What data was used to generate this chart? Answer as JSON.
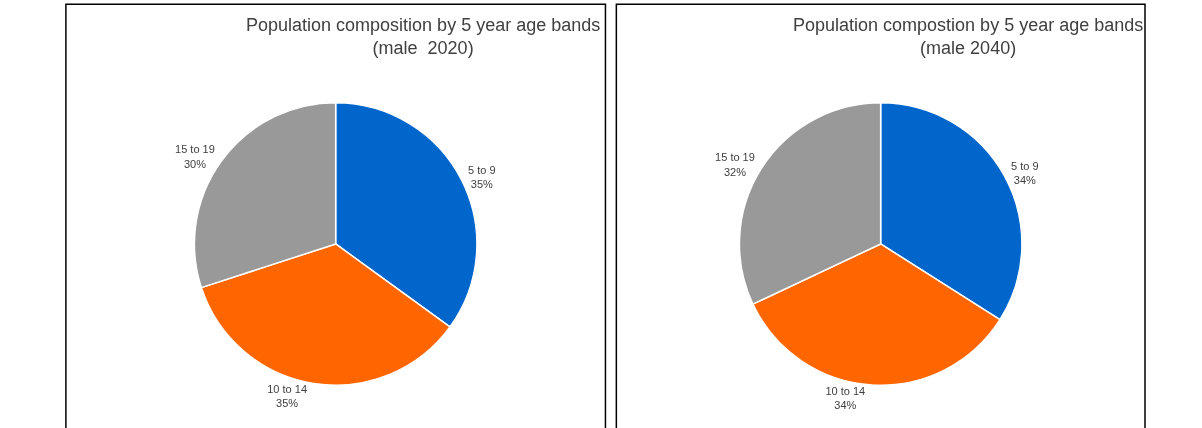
{
  "chart_data": [
    {
      "type": "pie",
      "title": "Population composition by 5 year age bands\n(male  2020)",
      "categories": [
        "5 to 9",
        "10 to 14",
        "15 to 19"
      ],
      "values": [
        35,
        35,
        30
      ],
      "value_labels": [
        "35%",
        "35%",
        "30%"
      ],
      "colors": [
        "#0066cc",
        "#ff6600",
        "#999999"
      ]
    },
    {
      "type": "pie",
      "title": "Population compostion by 5 year age bands\n(male 2040)",
      "categories": [
        "5 to 9",
        "10 to 14",
        "15 to 19"
      ],
      "values": [
        34,
        34,
        32
      ],
      "value_labels": [
        "34%",
        "34%",
        "32%"
      ],
      "colors": [
        "#0066cc",
        "#ff6600",
        "#999999"
      ]
    }
  ]
}
